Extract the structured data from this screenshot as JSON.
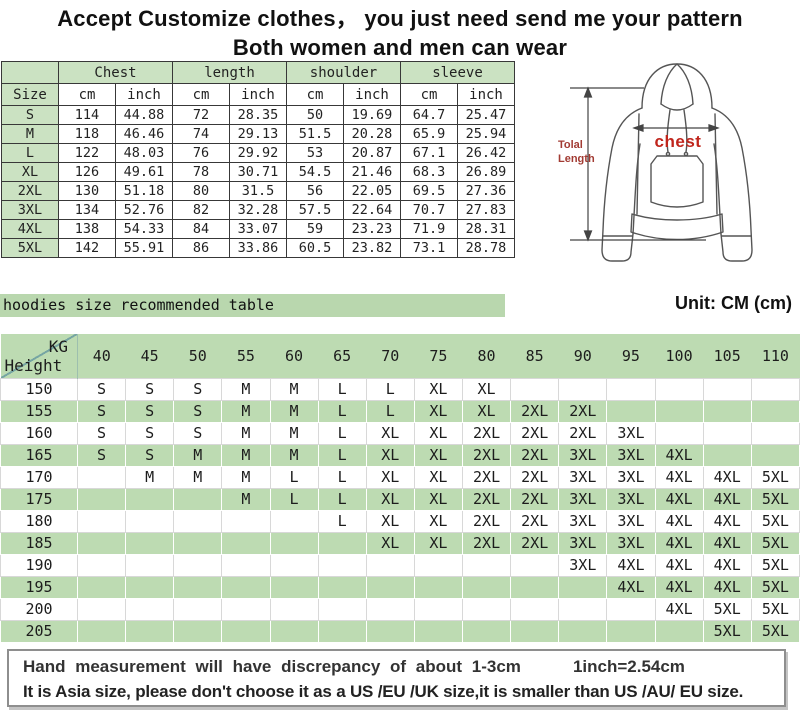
{
  "title": {
    "line1": "Accept Customize clothes， you just need send me your pattern",
    "line2": "Both women and men can wear"
  },
  "size_chart": {
    "size_header": "Size",
    "col_groups": [
      "Chest",
      "length",
      "shoulder",
      "sleeve"
    ],
    "units": [
      "cm",
      "inch",
      "cm",
      "inch",
      "cm",
      "inch",
      "cm",
      "inch"
    ],
    "rows": [
      {
        "size": "S",
        "values": [
          "114",
          "44.88",
          "72",
          "28.35",
          "50",
          "19.69",
          "64.7",
          "25.47"
        ]
      },
      {
        "size": "M",
        "values": [
          "118",
          "46.46",
          "74",
          "29.13",
          "51.5",
          "20.28",
          "65.9",
          "25.94"
        ]
      },
      {
        "size": "L",
        "values": [
          "122",
          "48.03",
          "76",
          "29.92",
          "53",
          "20.87",
          "67.1",
          "26.42"
        ]
      },
      {
        "size": "XL",
        "values": [
          "126",
          "49.61",
          "78",
          "30.71",
          "54.5",
          "21.46",
          "68.3",
          "26.89"
        ]
      },
      {
        "size": "2XL",
        "values": [
          "130",
          "51.18",
          "80",
          "31.5",
          "56",
          "22.05",
          "69.5",
          "27.36"
        ]
      },
      {
        "size": "3XL",
        "values": [
          "134",
          "52.76",
          "82",
          "32.28",
          "57.5",
          "22.64",
          "70.7",
          "27.83"
        ]
      },
      {
        "size": "4XL",
        "values": [
          "138",
          "54.33",
          "84",
          "33.07",
          "59",
          "23.23",
          "71.9",
          "28.31"
        ]
      },
      {
        "size": "5XL",
        "values": [
          "142",
          "55.91",
          "86",
          "33.86",
          "60.5",
          "23.82",
          "73.1",
          "28.78"
        ]
      }
    ]
  },
  "diagram": {
    "chest_label": "chest",
    "total_length_label": "Tolal Length"
  },
  "recommend": {
    "caption": "hoodies size recommended table",
    "unit_note": "Unit: CM (cm)",
    "kg_label": "KG",
    "height_label": "Height",
    "weights": [
      "40",
      "45",
      "50",
      "55",
      "60",
      "65",
      "70",
      "75",
      "80",
      "85",
      "90",
      "95",
      "100",
      "105",
      "110"
    ],
    "rows": [
      {
        "height": "150",
        "cells": [
          "S",
          "S",
          "S",
          "M",
          "M",
          "L",
          "L",
          "XL",
          "XL",
          "",
          "",
          "",
          "",
          "",
          ""
        ]
      },
      {
        "height": "155",
        "cells": [
          "S",
          "S",
          "S",
          "M",
          "M",
          "L",
          "L",
          "XL",
          "XL",
          "2XL",
          "2XL",
          "",
          "",
          "",
          ""
        ]
      },
      {
        "height": "160",
        "cells": [
          "S",
          "S",
          "S",
          "M",
          "M",
          "L",
          "XL",
          "XL",
          "2XL",
          "2XL",
          "2XL",
          "3XL",
          "",
          "",
          ""
        ]
      },
      {
        "height": "165",
        "cells": [
          "S",
          "S",
          "M",
          "M",
          "M",
          "L",
          "XL",
          "XL",
          "2XL",
          "2XL",
          "3XL",
          "3XL",
          "4XL",
          "",
          ""
        ]
      },
      {
        "height": "170",
        "cells": [
          "",
          "M",
          "M",
          "M",
          "L",
          "L",
          "XL",
          "XL",
          "2XL",
          "2XL",
          "3XL",
          "3XL",
          "4XL",
          "4XL",
          "5XL"
        ]
      },
      {
        "height": "175",
        "cells": [
          "",
          "",
          "",
          "M",
          "L",
          "L",
          "XL",
          "XL",
          "2XL",
          "2XL",
          "3XL",
          "3XL",
          "4XL",
          "4XL",
          "5XL"
        ]
      },
      {
        "height": "180",
        "cells": [
          "",
          "",
          "",
          "",
          "",
          "L",
          "XL",
          "XL",
          "2XL",
          "2XL",
          "3XL",
          "3XL",
          "4XL",
          "4XL",
          "5XL"
        ]
      },
      {
        "height": "185",
        "cells": [
          "",
          "",
          "",
          "",
          "",
          "",
          "XL",
          "XL",
          "2XL",
          "2XL",
          "3XL",
          "3XL",
          "4XL",
          "4XL",
          "5XL"
        ]
      },
      {
        "height": "190",
        "cells": [
          "",
          "",
          "",
          "",
          "",
          "",
          "",
          "",
          "",
          "",
          "3XL",
          "4XL",
          "4XL",
          "4XL",
          "5XL"
        ]
      },
      {
        "height": "195",
        "cells": [
          "",
          "",
          "",
          "",
          "",
          "",
          "",
          "",
          "",
          "",
          "",
          "4XL",
          "4XL",
          "4XL",
          "5XL"
        ]
      },
      {
        "height": "200",
        "cells": [
          "",
          "",
          "",
          "",
          "",
          "",
          "",
          "",
          "",
          "",
          "",
          "",
          "4XL",
          "5XL",
          "5XL"
        ]
      },
      {
        "height": "205",
        "cells": [
          "",
          "",
          "",
          "",
          "",
          "",
          "",
          "",
          "",
          "",
          "",
          "",
          "",
          "5XL",
          "5XL"
        ]
      }
    ]
  },
  "notes": {
    "line1_a": "Hand measurement will have discrepancy of about 1-3cm",
    "line1_b": "1inch=2.54cm",
    "line2": "It is Asia size, please don't choose it as a US /EU /UK size,it is smaller than US /AU/ EU size."
  },
  "colors": {
    "table1_green": "#cbe2c2",
    "table2_green": "#bddbb2",
    "chest_red": "#c0251c",
    "length_red": "#a23b33"
  }
}
